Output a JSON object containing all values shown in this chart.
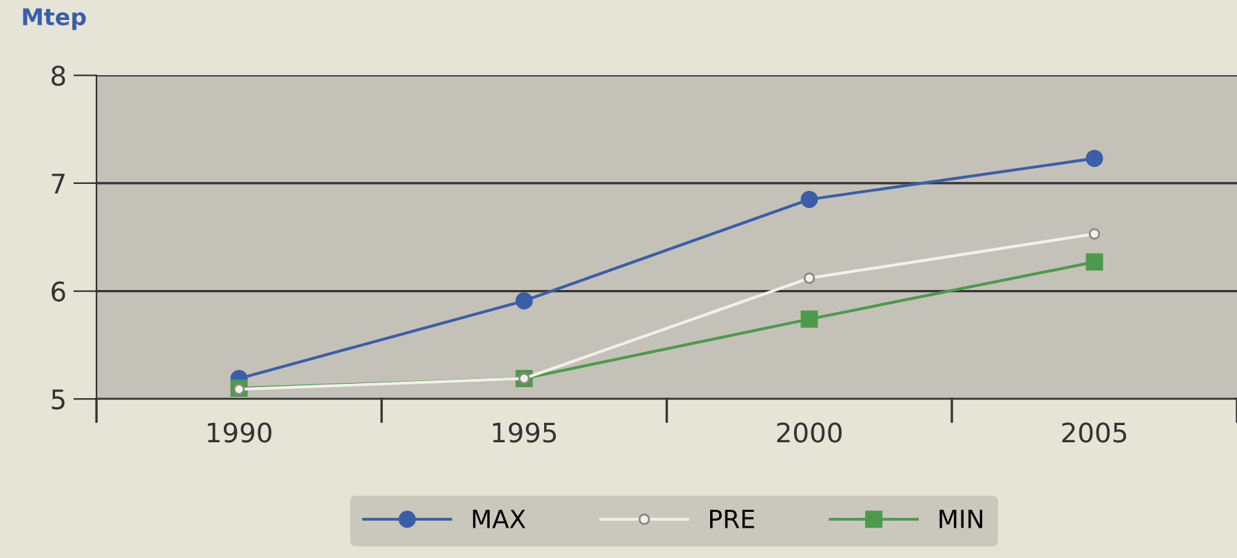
{
  "chart_data": {
    "type": "line",
    "ylabel": "Mtep",
    "categories": [
      "1990",
      "1995",
      "2000",
      "2005"
    ],
    "series": [
      {
        "name": "MAX",
        "color": "#3a5ea8",
        "marker": "circle",
        "values": [
          5.19,
          5.91,
          6.85,
          7.23
        ]
      },
      {
        "name": "PRE",
        "color": "#f2f0ea",
        "marker": "circle",
        "values": [
          5.09,
          5.19,
          6.12,
          6.53
        ]
      },
      {
        "name": "MIN",
        "color": "#4e9a4c",
        "marker": "square",
        "values": [
          5.1,
          5.19,
          5.74,
          6.27
        ]
      }
    ],
    "ylim": [
      5,
      8
    ],
    "yticks": [
      5,
      6,
      7,
      8
    ],
    "grid": "y",
    "legend": "bottom",
    "line_style": "solid"
  }
}
